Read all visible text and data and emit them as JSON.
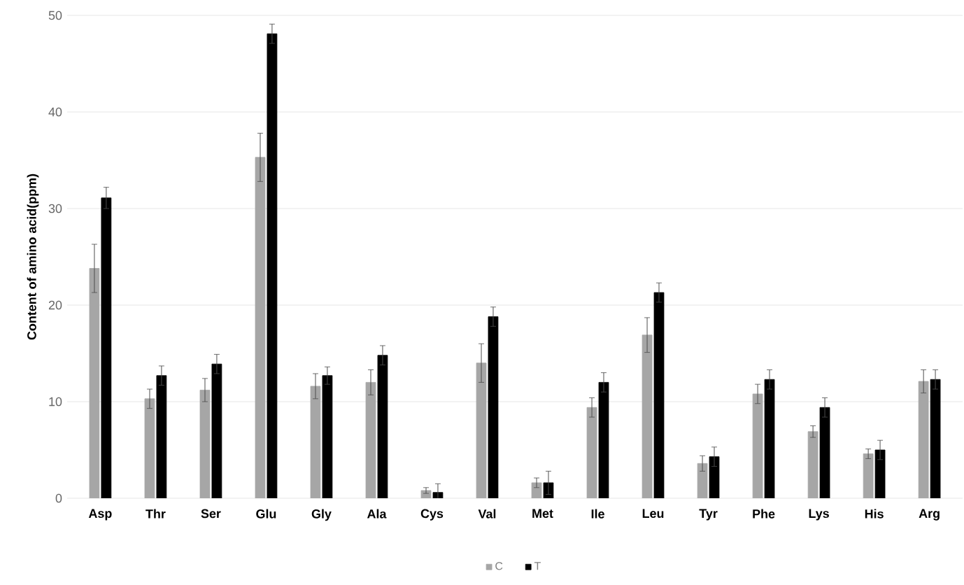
{
  "chart_data": {
    "type": "bar",
    "ylabel": "Content of amino acid(ppm)",
    "categories": [
      "Asp",
      "Thr",
      "Ser",
      "Glu",
      "Gly",
      "Ala",
      "Cys",
      "Val",
      "Met",
      "Ile",
      "Leu",
      "Tyr",
      "Phe",
      "Lys",
      "His",
      "Arg"
    ],
    "series": [
      {
        "name": "C",
        "color": "#a6a6a6",
        "values": [
          23.8,
          10.3,
          11.2,
          35.3,
          11.6,
          12.0,
          0.8,
          14.0,
          1.6,
          9.4,
          16.9,
          3.6,
          10.8,
          6.9,
          4.6,
          12.1
        ],
        "errors": [
          2.5,
          1.0,
          1.2,
          2.5,
          1.3,
          1.3,
          0.3,
          2.0,
          0.5,
          1.0,
          1.8,
          0.8,
          1.0,
          0.6,
          0.5,
          1.2
        ]
      },
      {
        "name": "T",
        "color": "#000000",
        "values": [
          31.1,
          12.7,
          13.9,
          48.1,
          12.7,
          14.8,
          0.6,
          18.8,
          1.6,
          12.0,
          21.3,
          4.3,
          12.3,
          9.4,
          5.0,
          12.3
        ],
        "errors": [
          1.1,
          1.0,
          1.0,
          1.0,
          0.9,
          1.0,
          0.9,
          1.0,
          1.2,
          1.0,
          1.0,
          1.0,
          1.0,
          1.0,
          1.0,
          1.0
        ]
      }
    ],
    "ylim": [
      0,
      50
    ],
    "yticks": [
      0,
      10,
      20,
      30,
      40,
      50
    ],
    "grid": "y",
    "legend": "bottom"
  }
}
